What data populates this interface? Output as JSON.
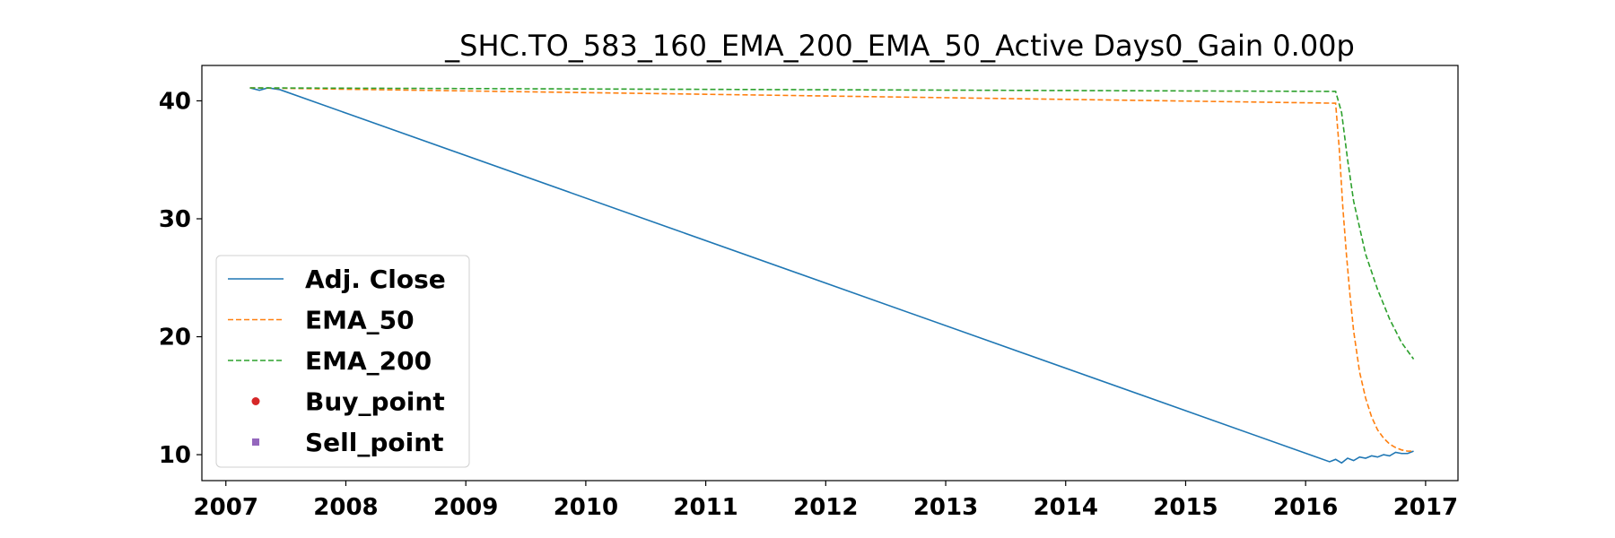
{
  "chart_data": {
    "type": "line",
    "title": "_SHC.TO_583_160_EMA_200_EMA_50_Active Days0_Gain   0.00p",
    "xlabel": "",
    "ylabel": "",
    "xlim": [
      2006.8,
      2017.27
    ],
    "ylim": [
      7.8,
      43.0
    ],
    "x_ticks": [
      2007,
      2008,
      2009,
      2010,
      2011,
      2012,
      2013,
      2014,
      2015,
      2016,
      2017
    ],
    "y_ticks": [
      10,
      20,
      30,
      40
    ],
    "grid": false,
    "legend_position": "lower-left",
    "series": [
      {
        "name": "Adj. Close",
        "color": "#1f77b4",
        "style": "solid",
        "points": [
          [
            2007.2,
            41.1
          ],
          [
            2007.28,
            40.9
          ],
          [
            2007.35,
            41.1
          ],
          [
            2007.45,
            40.95
          ],
          [
            2016.2,
            9.4
          ],
          [
            2016.25,
            9.6
          ],
          [
            2016.3,
            9.3
          ],
          [
            2016.35,
            9.7
          ],
          [
            2016.4,
            9.5
          ],
          [
            2016.45,
            9.8
          ],
          [
            2016.5,
            9.7
          ],
          [
            2016.55,
            9.9
          ],
          [
            2016.6,
            9.8
          ],
          [
            2016.65,
            10.0
          ],
          [
            2016.7,
            9.9
          ],
          [
            2016.75,
            10.2
          ],
          [
            2016.8,
            10.1
          ],
          [
            2016.85,
            10.1
          ],
          [
            2016.9,
            10.3
          ]
        ]
      },
      {
        "name": "EMA_50",
        "color": "#ff7f0e",
        "style": "dashed",
        "points": [
          [
            2007.2,
            41.1
          ],
          [
            2016.25,
            39.8
          ],
          [
            2016.28,
            36.0
          ],
          [
            2016.31,
            31.0
          ],
          [
            2016.34,
            27.0
          ],
          [
            2016.37,
            23.5
          ],
          [
            2016.4,
            20.5
          ],
          [
            2016.45,
            17.0
          ],
          [
            2016.5,
            14.8
          ],
          [
            2016.55,
            13.2
          ],
          [
            2016.6,
            12.1
          ],
          [
            2016.65,
            11.4
          ],
          [
            2016.7,
            10.9
          ],
          [
            2016.75,
            10.6
          ],
          [
            2016.8,
            10.4
          ],
          [
            2016.85,
            10.3
          ],
          [
            2016.9,
            10.3
          ]
        ]
      },
      {
        "name": "EMA_200",
        "color": "#2ca02c",
        "style": "dashed",
        "points": [
          [
            2007.2,
            41.1
          ],
          [
            2016.25,
            40.8
          ],
          [
            2016.3,
            39.0
          ],
          [
            2016.35,
            35.0
          ],
          [
            2016.4,
            31.5
          ],
          [
            2016.5,
            27.0
          ],
          [
            2016.6,
            24.0
          ],
          [
            2016.7,
            21.5
          ],
          [
            2016.8,
            19.5
          ],
          [
            2016.9,
            18.1
          ]
        ]
      },
      {
        "name": "Buy_point",
        "color": "#d62728",
        "style": "marker-circle",
        "points": []
      },
      {
        "name": "Sell_point",
        "color": "#9467bd",
        "style": "marker-square",
        "points": []
      }
    ]
  }
}
